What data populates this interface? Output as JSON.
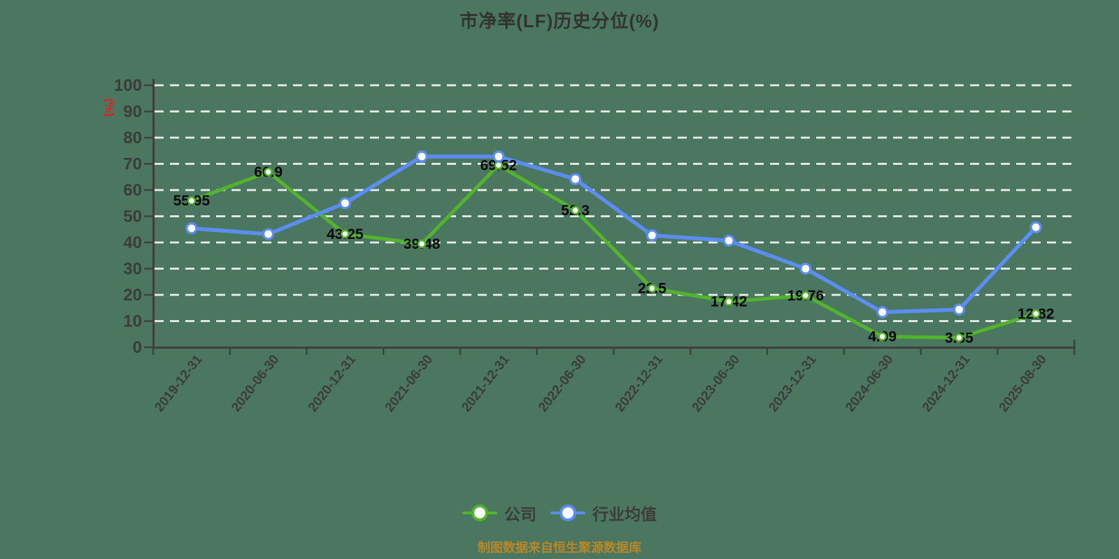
{
  "page": {
    "title": "市净率(LF)历史分位(%)",
    "y_axis_unit": "(%)",
    "footer_note": "制图数据来自恒生聚源数据库"
  },
  "legend": {
    "company_label": "公司",
    "industry_label": "行业均值"
  },
  "colors": {
    "background": "#4b7761",
    "company_line": "#52b32c",
    "industry_line": "#5b8df2",
    "grid_line": "#ededed",
    "axis_line": "#3f3f3f",
    "tick_label": "#3c3c3c",
    "data_label": "#0a0a0a",
    "title": "#333333",
    "unit_label": "#e02020",
    "footer": "#b78728",
    "marker_fill": "#ffffff"
  },
  "chart_data": {
    "type": "line",
    "title": "市净率(LF)历史分位(%)",
    "categories": [
      "2019-12-31",
      "2020-06-30",
      "2020-12-31",
      "2021-06-30",
      "2021-12-31",
      "2022-06-30",
      "2022-12-31",
      "2023-06-30",
      "2023-12-31",
      "2024-06-30",
      "2024-12-31",
      "2025-08-30"
    ],
    "series": [
      {
        "name": "公司",
        "color": "#52b32c",
        "show_labels": true,
        "values": [
          55.95,
          66.9,
          43.25,
          39.48,
          69.52,
          52.3,
          22.5,
          17.42,
          19.76,
          4.09,
          3.65,
          12.82
        ],
        "labels": [
          "55.95",
          "66.9",
          "43.25",
          "39.48",
          "69.52",
          "52.3",
          "22.5",
          "17.42",
          "19.76",
          "4.09",
          "3.65",
          "12.82"
        ]
      },
      {
        "name": "行业均值",
        "color": "#5b8df2",
        "show_labels": false,
        "values": [
          45.4,
          43.2,
          55.0,
          72.8,
          72.8,
          64.2,
          42.7,
          40.7,
          30.0,
          13.4,
          14.4,
          45.8
        ],
        "labels": []
      }
    ],
    "xlabel": "",
    "ylabel": "(%)",
    "ylim": [
      0,
      100
    ],
    "y_ticks": [
      0,
      10,
      20,
      30,
      40,
      50,
      60,
      70,
      80,
      90,
      100
    ],
    "grid": "horizontal-dashed",
    "legend_position": "bottom"
  }
}
